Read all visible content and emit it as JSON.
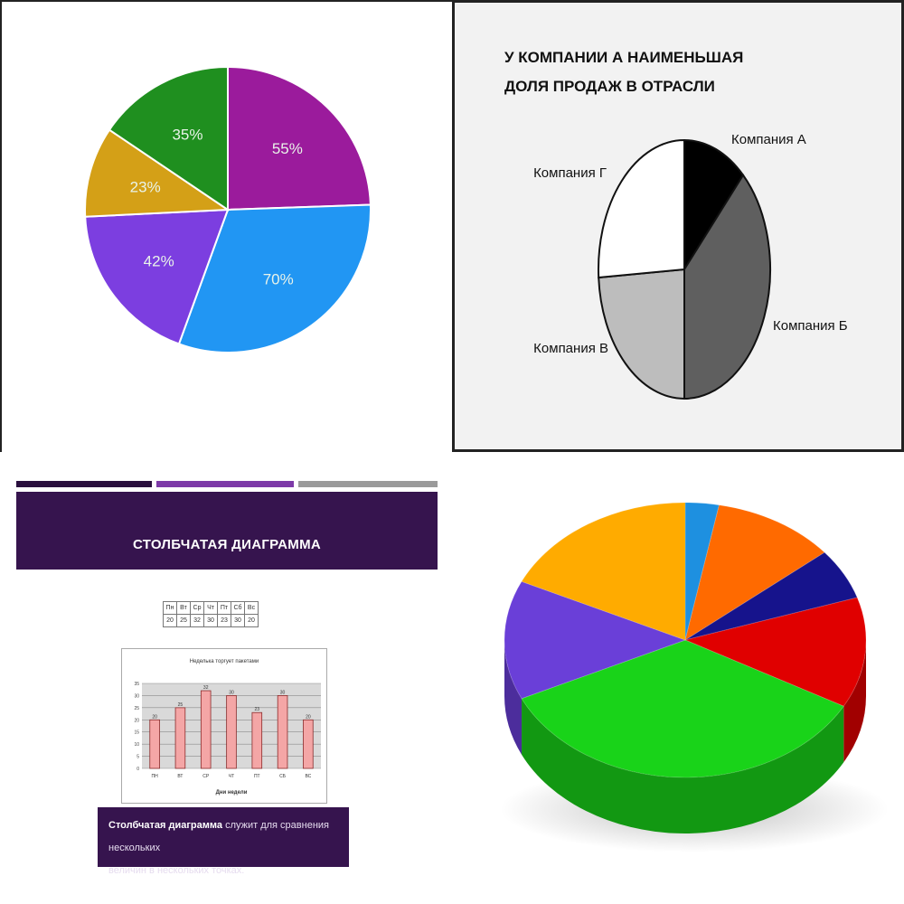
{
  "chart_data": [
    {
      "type": "pie",
      "values": [
        55,
        70,
        42,
        23,
        35
      ],
      "labels": [
        "55%",
        "70%",
        "42%",
        "23%",
        "35%"
      ],
      "colors": [
        "#9b1b9c",
        "#2196f3",
        "#7c3ee0",
        "#d4a017",
        "#1f8f1f"
      ]
    },
    {
      "type": "pie",
      "title_lines": [
        "У КОМПАНИИ А НАИМЕНЬШАЯ",
        "ДОЛЯ ПРОДАЖ В ОТРАСЛИ"
      ],
      "categories": [
        "Компания А",
        "Компания Б",
        "Компания В",
        "Компания Г"
      ],
      "values": [
        12,
        38,
        24,
        26
      ],
      "colors": [
        "#000000",
        "#5f5f5f",
        "#bdbdbd",
        "#ffffff"
      ]
    },
    {
      "type": "bar",
      "header": "СТОЛБЧАТАЯ ДИАГРАММА",
      "table": {
        "days": [
          "Пн",
          "Вт",
          "Ср",
          "Чт",
          "Пт",
          "Сб",
          "Вс"
        ],
        "values": [
          "20",
          "25",
          "32",
          "30",
          "23",
          "30",
          "20"
        ]
      },
      "title": "Неделька торгует пакетами",
      "xlabel": "Дни недели",
      "categories": [
        "ПН",
        "ВТ",
        "СР",
        "ЧТ",
        "ПТ",
        "СБ",
        "ВС"
      ],
      "values": [
        20,
        25,
        32,
        30,
        23,
        30,
        20
      ],
      "ylim": [
        0,
        35
      ],
      "yticks": [
        0,
        5,
        10,
        15,
        20,
        25,
        30,
        35
      ],
      "grid": true,
      "bar_color": "#f4a6a6",
      "caption_bold": "Столбчатая диаграмма",
      "caption_rest": " служит для сравнения нескольких",
      "caption_line2": "величин в нескольких точках."
    },
    {
      "type": "pie",
      "style": "3d",
      "values": [
        3,
        11,
        6,
        13,
        35,
        14,
        18
      ],
      "colors": [
        "#1e90e0",
        "#ff6a00",
        "#16138c",
        "#e00000",
        "#19d319",
        "#6a3fd8",
        "#ffab00"
      ]
    }
  ]
}
